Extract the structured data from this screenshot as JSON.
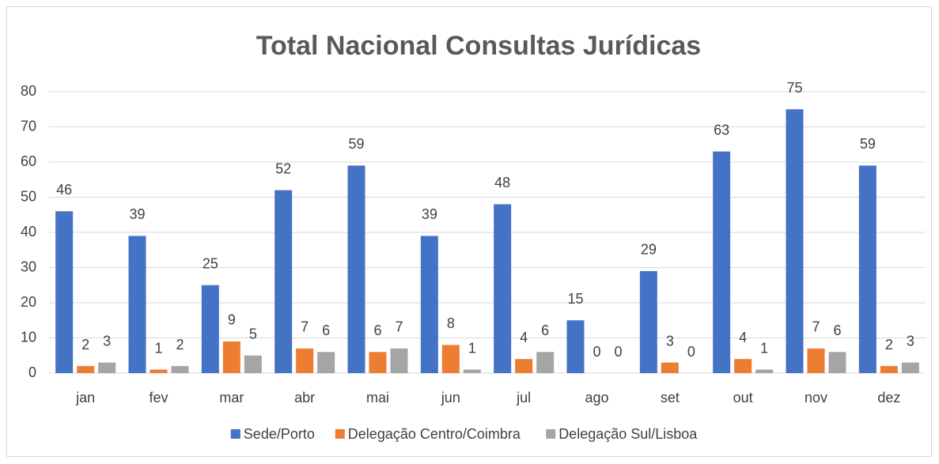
{
  "chart_data": {
    "type": "bar",
    "title": "Total Nacional Consultas Jurídicas",
    "categories": [
      "jan",
      "fev",
      "mar",
      "abr",
      "mai",
      "jun",
      "jul",
      "ago",
      "set",
      "out",
      "nov",
      "dez"
    ],
    "series": [
      {
        "name": "Sede/Porto",
        "color": "#4472c4",
        "values": [
          46,
          39,
          25,
          52,
          59,
          39,
          48,
          15,
          29,
          63,
          75,
          59
        ]
      },
      {
        "name": "Delegação Centro/Coimbra",
        "color": "#ed7d31",
        "values": [
          2,
          1,
          9,
          7,
          6,
          8,
          4,
          0,
          3,
          4,
          7,
          2
        ]
      },
      {
        "name": "Delegação Sul/Lisboa",
        "color": "#a5a5a5",
        "values": [
          3,
          2,
          5,
          6,
          7,
          1,
          6,
          0,
          0,
          1,
          6,
          3
        ]
      }
    ],
    "ylim": [
      0,
      80
    ],
    "yticks": [
      0,
      10,
      20,
      30,
      40,
      50,
      60,
      70,
      80
    ],
    "grid": true,
    "legend": "bottom"
  }
}
